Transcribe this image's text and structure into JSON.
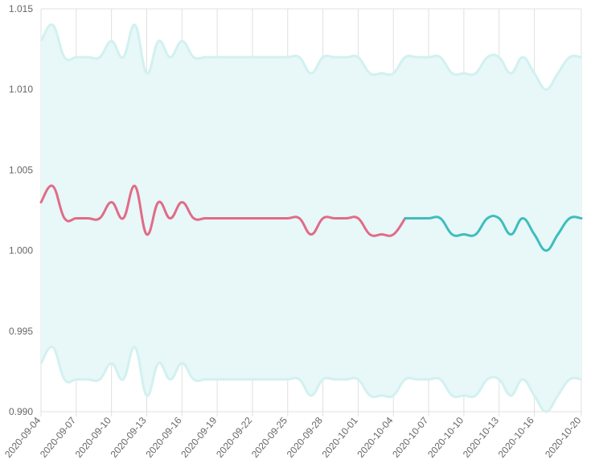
{
  "chart_data": {
    "type": "line",
    "title": "",
    "xlabel": "",
    "ylabel": "",
    "ylim": [
      0.99,
      1.015
    ],
    "y_ticks": [
      "1.015",
      "1.010",
      "1.005",
      "1.000",
      "0.995",
      "0.990"
    ],
    "x_tick_labels": [
      "2020-09-04",
      "2020-09-07",
      "2020-09-10",
      "2020-09-13",
      "2020-09-16",
      "2020-09-19",
      "2020-09-22",
      "2020-09-25",
      "2020-09-28",
      "2020-10-01",
      "2020-10-04",
      "2020-10-07",
      "2020-10-10",
      "2020-10-13",
      "2020-10-16",
      "2020-10-20"
    ],
    "grid": true,
    "x": [
      "2020-09-04",
      "2020-09-05",
      "2020-09-06",
      "2020-09-07",
      "2020-09-08",
      "2020-09-09",
      "2020-09-10",
      "2020-09-11",
      "2020-09-12",
      "2020-09-13",
      "2020-09-14",
      "2020-09-15",
      "2020-09-16",
      "2020-09-17",
      "2020-09-18",
      "2020-09-19",
      "2020-09-20",
      "2020-09-21",
      "2020-09-22",
      "2020-09-23",
      "2020-09-24",
      "2020-09-25",
      "2020-09-26",
      "2020-09-27",
      "2020-09-28",
      "2020-09-29",
      "2020-09-30",
      "2020-10-01",
      "2020-10-02",
      "2020-10-03",
      "2020-10-04",
      "2020-10-05",
      "2020-10-06",
      "2020-10-07",
      "2020-10-08",
      "2020-10-09",
      "2020-10-10",
      "2020-10-11",
      "2020-10-12",
      "2020-10-13",
      "2020-10-14",
      "2020-10-15",
      "2020-10-16",
      "2020-10-17",
      "2020-10-18",
      "2020-10-19",
      "2020-10-20"
    ],
    "series": [
      {
        "color": "#e06c88",
        "x": [
          "2020-09-04",
          "2020-09-05",
          "2020-09-06",
          "2020-09-07",
          "2020-09-08",
          "2020-09-09",
          "2020-09-10",
          "2020-09-11",
          "2020-09-12",
          "2020-09-13",
          "2020-09-14",
          "2020-09-15",
          "2020-09-16",
          "2020-09-17",
          "2020-09-18",
          "2020-09-19",
          "2020-09-20",
          "2020-09-21",
          "2020-09-22",
          "2020-09-23",
          "2020-09-24",
          "2020-09-25",
          "2020-09-26",
          "2020-09-27",
          "2020-09-28",
          "2020-09-29",
          "2020-09-30",
          "2020-10-01",
          "2020-10-02",
          "2020-10-03",
          "2020-10-04",
          "2020-10-05"
        ],
        "values": [
          1.003,
          1.004,
          1.002,
          1.002,
          1.002,
          1.002,
          1.003,
          1.002,
          1.004,
          1.001,
          1.003,
          1.002,
          1.003,
          1.002,
          1.002,
          1.002,
          1.002,
          1.002,
          1.002,
          1.002,
          1.002,
          1.002,
          1.002,
          1.001,
          1.002,
          1.002,
          1.002,
          1.002,
          1.001,
          1.001,
          1.001,
          1.002
        ]
      },
      {
        "color": "#3fbdbd",
        "x": [
          "2020-10-05",
          "2020-10-06",
          "2020-10-07",
          "2020-10-08",
          "2020-10-09",
          "2020-10-10",
          "2020-10-11",
          "2020-10-12",
          "2020-10-13",
          "2020-10-14",
          "2020-10-15",
          "2020-10-16",
          "2020-10-17",
          "2020-10-18",
          "2020-10-19",
          "2020-10-20"
        ],
        "values": [
          1.002,
          1.002,
          1.002,
          1.002,
          1.001,
          1.001,
          1.001,
          1.002,
          1.002,
          1.001,
          1.002,
          1.001,
          1.0,
          1.001,
          1.002,
          1.002
        ]
      }
    ],
    "band": {
      "fill": "#e8f7f7",
      "stroke": "#d2f1f1",
      "upper": [
        1.013,
        1.014,
        1.012,
        1.012,
        1.012,
        1.012,
        1.013,
        1.012,
        1.014,
        1.011,
        1.013,
        1.012,
        1.013,
        1.012,
        1.012,
        1.012,
        1.012,
        1.012,
        1.012,
        1.012,
        1.012,
        1.012,
        1.012,
        1.011,
        1.012,
        1.012,
        1.012,
        1.012,
        1.011,
        1.011,
        1.011,
        1.012,
        1.012,
        1.012,
        1.012,
        1.011,
        1.011,
        1.011,
        1.012,
        1.012,
        1.011,
        1.012,
        1.011,
        1.01,
        1.011,
        1.012,
        1.012
      ],
      "lower": [
        0.993,
        0.994,
        0.992,
        0.992,
        0.992,
        0.992,
        0.993,
        0.992,
        0.994,
        0.991,
        0.993,
        0.992,
        0.993,
        0.992,
        0.992,
        0.992,
        0.992,
        0.992,
        0.992,
        0.992,
        0.992,
        0.992,
        0.992,
        0.991,
        0.992,
        0.992,
        0.992,
        0.992,
        0.991,
        0.991,
        0.991,
        0.992,
        0.992,
        0.992,
        0.992,
        0.991,
        0.991,
        0.991,
        0.992,
        0.992,
        0.991,
        0.992,
        0.991,
        0.99,
        0.991,
        0.992,
        0.992
      ]
    },
    "gridline_color": "#e0e0e0"
  }
}
